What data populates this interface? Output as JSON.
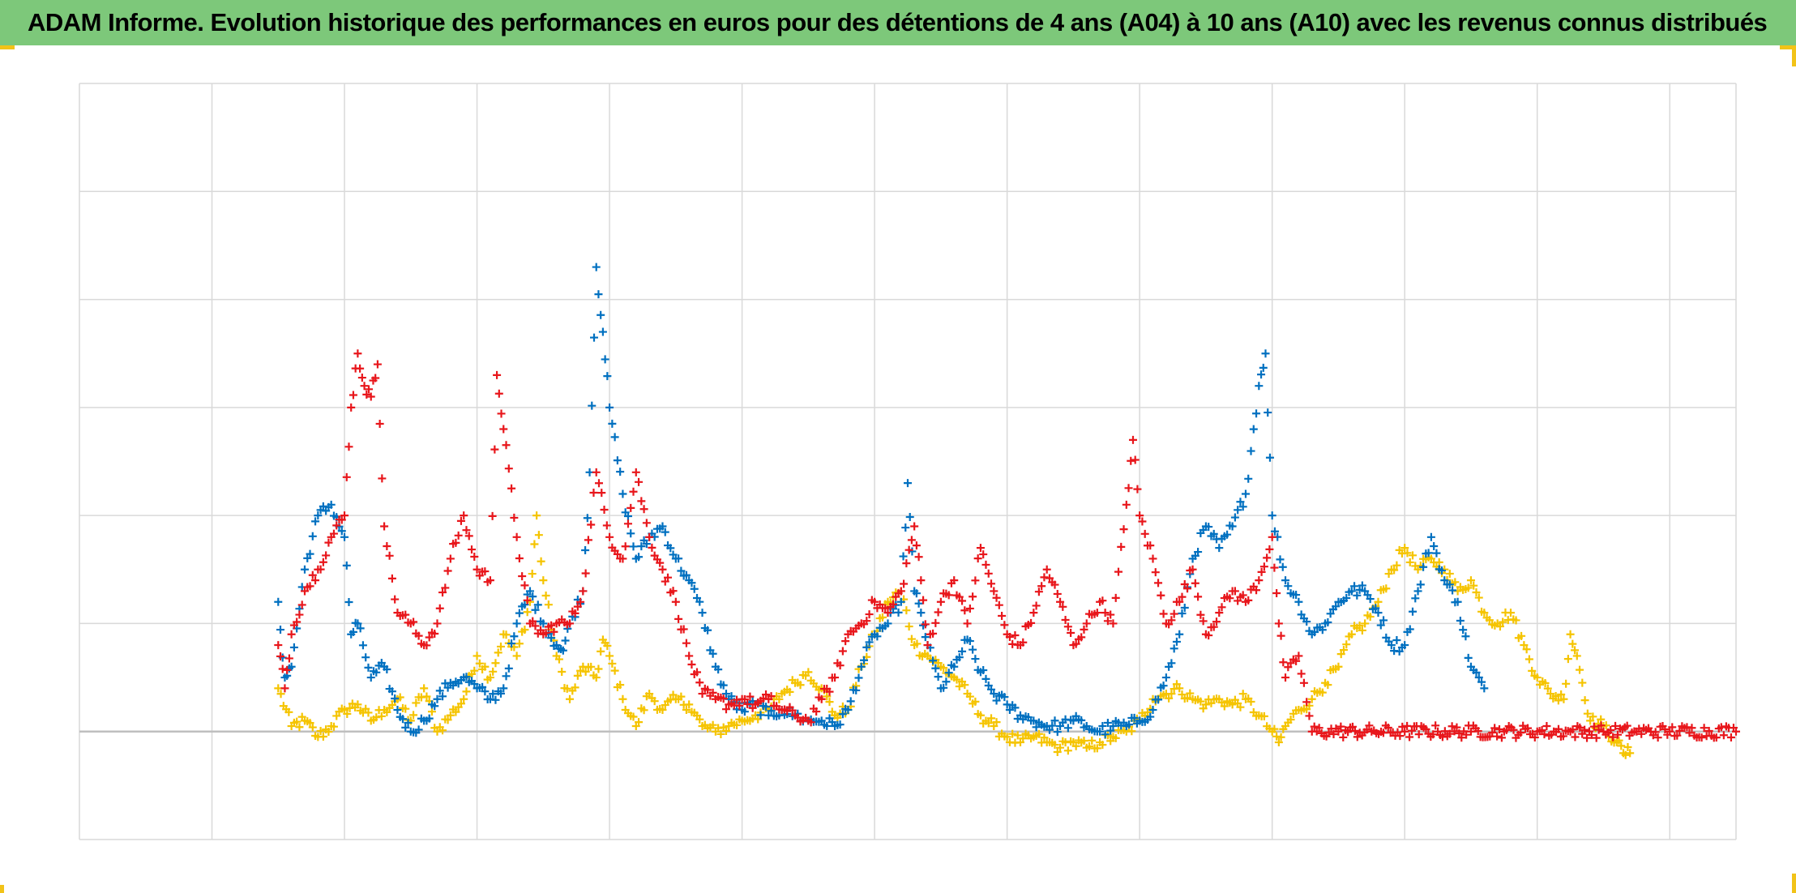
{
  "header": {
    "title": "ADAM Informe. Evolution historique des performances en euros pour des détentions de 4 ans (A04) à 10 ans (A10) avec les revenus connus distribués"
  },
  "colors": {
    "title_bg": "#7dc87a",
    "accent_corner": "#f2c318",
    "grid": "#d9d9d9",
    "zero_line": "#bfbfbf"
  },
  "chart_data": {
    "type": "scatter",
    "marker": "plus",
    "title": "",
    "xlabel": "",
    "ylabel": "",
    "xlim": [
      0,
      12.5
    ],
    "ylim": [
      -1,
      6
    ],
    "grid": true,
    "tick_labels_visible": false,
    "legend": "none",
    "series": [
      {
        "color": "#f5c400",
        "points": [
          [
            1.5,
            0.4
          ],
          [
            1.6,
            0.05
          ],
          [
            1.7,
            0.1
          ],
          [
            1.8,
            -0.05
          ],
          [
            1.9,
            0.05
          ],
          [
            2.0,
            0.2
          ],
          [
            2.1,
            0.25
          ],
          [
            2.2,
            0.1
          ],
          [
            2.3,
            0.2
          ],
          [
            2.4,
            0.3
          ],
          [
            2.5,
            0.1
          ],
          [
            2.6,
            0.4
          ],
          [
            2.7,
            0.0
          ],
          [
            2.8,
            0.15
          ],
          [
            2.9,
            0.3
          ],
          [
            3.0,
            0.7
          ],
          [
            3.1,
            0.5
          ],
          [
            3.2,
            0.9
          ],
          [
            3.3,
            0.7
          ],
          [
            3.4,
            1.2
          ],
          [
            3.45,
            2.0
          ],
          [
            3.5,
            1.4
          ],
          [
            3.6,
            0.7
          ],
          [
            3.7,
            0.3
          ],
          [
            3.8,
            0.6
          ],
          [
            3.9,
            0.5
          ],
          [
            3.95,
            0.85
          ],
          [
            4.0,
            0.7
          ],
          [
            4.1,
            0.3
          ],
          [
            4.2,
            0.05
          ],
          [
            4.3,
            0.35
          ],
          [
            4.4,
            0.2
          ],
          [
            4.5,
            0.3
          ],
          [
            4.6,
            0.25
          ],
          [
            4.7,
            0.05
          ],
          [
            4.8,
            0.0
          ],
          [
            4.9,
            0.05
          ],
          [
            5.0,
            0.1
          ],
          [
            5.1,
            0.15
          ],
          [
            5.2,
            0.2
          ],
          [
            5.3,
            0.35
          ],
          [
            5.4,
            0.45
          ],
          [
            5.5,
            0.55
          ],
          [
            5.6,
            0.4
          ],
          [
            5.7,
            0.15
          ],
          [
            5.8,
            0.2
          ],
          [
            5.9,
            0.6
          ],
          [
            6.0,
            0.9
          ],
          [
            6.1,
            1.2
          ],
          [
            6.2,
            1.3
          ],
          [
            6.3,
            0.8
          ],
          [
            6.4,
            0.7
          ],
          [
            6.5,
            0.6
          ],
          [
            6.6,
            0.5
          ],
          [
            6.7,
            0.35
          ],
          [
            6.8,
            0.15
          ],
          [
            6.9,
            0.05
          ],
          [
            7.0,
            -0.05
          ],
          [
            7.1,
            -0.1
          ],
          [
            7.2,
            -0.05
          ],
          [
            7.3,
            -0.1
          ],
          [
            7.4,
            -0.15
          ],
          [
            7.5,
            -0.1
          ],
          [
            7.6,
            -0.15
          ],
          [
            7.7,
            -0.1
          ],
          [
            7.8,
            -0.05
          ],
          [
            7.9,
            0.0
          ],
          [
            8.0,
            0.1
          ],
          [
            8.1,
            0.3
          ],
          [
            8.2,
            0.35
          ],
          [
            8.3,
            0.4
          ],
          [
            8.4,
            0.3
          ],
          [
            8.5,
            0.25
          ],
          [
            8.6,
            0.3
          ],
          [
            8.7,
            0.25
          ],
          [
            8.8,
            0.3
          ],
          [
            8.9,
            0.15
          ],
          [
            9.0,
            0.0
          ],
          [
            9.05,
            -0.1
          ],
          [
            9.1,
            0.05
          ],
          [
            9.2,
            0.2
          ],
          [
            9.3,
            0.3
          ],
          [
            9.4,
            0.45
          ],
          [
            9.5,
            0.6
          ],
          [
            9.6,
            0.9
          ],
          [
            9.7,
            1.0
          ],
          [
            9.8,
            1.2
          ],
          [
            9.9,
            1.5
          ],
          [
            10.0,
            1.7
          ],
          [
            10.1,
            1.5
          ],
          [
            10.2,
            1.6
          ],
          [
            10.3,
            1.5
          ],
          [
            10.4,
            1.3
          ],
          [
            10.5,
            1.4
          ],
          [
            10.6,
            1.1
          ],
          [
            10.7,
            1.0
          ],
          [
            10.8,
            1.1
          ],
          [
            10.9,
            0.8
          ],
          [
            11.0,
            0.5
          ],
          [
            11.1,
            0.35
          ],
          [
            11.2,
            0.3
          ],
          [
            11.25,
            0.9
          ],
          [
            11.3,
            0.7
          ],
          [
            11.4,
            0.1
          ],
          [
            11.5,
            0.05
          ],
          [
            11.6,
            -0.1
          ],
          [
            11.65,
            -0.2
          ],
          [
            11.7,
            -0.2
          ]
        ]
      },
      {
        "color": "#0070c0",
        "points": [
          [
            1.5,
            1.2
          ],
          [
            1.55,
            0.5
          ],
          [
            1.6,
            0.6
          ],
          [
            1.7,
            1.5
          ],
          [
            1.8,
            2.0
          ],
          [
            1.9,
            2.1
          ],
          [
            2.0,
            1.8
          ],
          [
            2.05,
            0.9
          ],
          [
            2.1,
            1.0
          ],
          [
            2.2,
            0.5
          ],
          [
            2.3,
            0.6
          ],
          [
            2.4,
            0.2
          ],
          [
            2.5,
            0.0
          ],
          [
            2.6,
            0.1
          ],
          [
            2.7,
            0.3
          ],
          [
            2.8,
            0.45
          ],
          [
            2.9,
            0.5
          ],
          [
            3.0,
            0.4
          ],
          [
            3.1,
            0.3
          ],
          [
            3.2,
            0.4
          ],
          [
            3.3,
            1.0
          ],
          [
            3.4,
            1.3
          ],
          [
            3.5,
            1.0
          ],
          [
            3.6,
            0.8
          ],
          [
            3.65,
            0.75
          ],
          [
            3.7,
            1.0
          ],
          [
            3.8,
            1.3
          ],
          [
            3.85,
            2.4
          ],
          [
            3.9,
            4.3
          ],
          [
            3.95,
            3.7
          ],
          [
            4.0,
            3.0
          ],
          [
            4.1,
            2.2
          ],
          [
            4.2,
            1.6
          ],
          [
            4.3,
            1.8
          ],
          [
            4.4,
            1.9
          ],
          [
            4.5,
            1.6
          ],
          [
            4.6,
            1.4
          ],
          [
            4.7,
            1.1
          ],
          [
            4.8,
            0.6
          ],
          [
            4.9,
            0.3
          ],
          [
            5.0,
            0.2
          ],
          [
            5.1,
            0.25
          ],
          [
            5.2,
            0.15
          ],
          [
            5.3,
            0.2
          ],
          [
            5.4,
            0.15
          ],
          [
            5.5,
            0.1
          ],
          [
            5.6,
            0.1
          ],
          [
            5.7,
            0.05
          ],
          [
            5.8,
            0.2
          ],
          [
            5.9,
            0.6
          ],
          [
            6.0,
            0.9
          ],
          [
            6.1,
            1.0
          ],
          [
            6.2,
            1.2
          ],
          [
            6.25,
            2.3
          ],
          [
            6.3,
            1.3
          ],
          [
            6.35,
            1.1
          ],
          [
            6.4,
            0.8
          ],
          [
            6.5,
            0.4
          ],
          [
            6.6,
            0.6
          ],
          [
            6.7,
            0.85
          ],
          [
            6.8,
            0.55
          ],
          [
            6.9,
            0.35
          ],
          [
            7.0,
            0.25
          ],
          [
            7.1,
            0.15
          ],
          [
            7.2,
            0.1
          ],
          [
            7.3,
            0.05
          ],
          [
            7.4,
            0.05
          ],
          [
            7.5,
            0.1
          ],
          [
            7.6,
            0.05
          ],
          [
            7.7,
            0.0
          ],
          [
            7.8,
            0.05
          ],
          [
            7.9,
            0.05
          ],
          [
            8.0,
            0.1
          ],
          [
            8.1,
            0.2
          ],
          [
            8.2,
            0.5
          ],
          [
            8.3,
            0.9
          ],
          [
            8.4,
            1.6
          ],
          [
            8.5,
            1.9
          ],
          [
            8.6,
            1.7
          ],
          [
            8.7,
            1.9
          ],
          [
            8.8,
            2.2
          ],
          [
            8.9,
            3.2
          ],
          [
            8.95,
            3.5
          ],
          [
            9.0,
            2.0
          ],
          [
            9.1,
            1.4
          ],
          [
            9.2,
            1.2
          ],
          [
            9.3,
            0.9
          ],
          [
            9.4,
            1.0
          ],
          [
            9.5,
            1.2
          ],
          [
            9.6,
            1.3
          ],
          [
            9.7,
            1.3
          ],
          [
            9.8,
            1.1
          ],
          [
            9.9,
            0.8
          ],
          [
            10.0,
            0.8
          ],
          [
            10.1,
            1.3
          ],
          [
            10.2,
            1.8
          ],
          [
            10.3,
            1.4
          ],
          [
            10.4,
            1.2
          ],
          [
            10.5,
            0.6
          ],
          [
            10.6,
            0.4
          ]
        ]
      },
      {
        "color": "#e8161b",
        "points": [
          [
            1.5,
            0.8
          ],
          [
            1.55,
            0.4
          ],
          [
            1.6,
            0.9
          ],
          [
            1.7,
            1.3
          ],
          [
            1.8,
            1.5
          ],
          [
            1.9,
            1.8
          ],
          [
            2.0,
            2.0
          ],
          [
            2.05,
            3.0
          ],
          [
            2.1,
            3.5
          ],
          [
            2.15,
            3.2
          ],
          [
            2.2,
            3.1
          ],
          [
            2.25,
            3.4
          ],
          [
            2.3,
            1.9
          ],
          [
            2.4,
            1.1
          ],
          [
            2.5,
            1.0
          ],
          [
            2.6,
            0.8
          ],
          [
            2.7,
            1.0
          ],
          [
            2.8,
            1.6
          ],
          [
            2.9,
            2.0
          ],
          [
            3.0,
            1.5
          ],
          [
            3.1,
            1.4
          ],
          [
            3.15,
            3.3
          ],
          [
            3.2,
            2.8
          ],
          [
            3.3,
            1.8
          ],
          [
            3.4,
            1.0
          ],
          [
            3.5,
            0.9
          ],
          [
            3.6,
            1.0
          ],
          [
            3.7,
            1.0
          ],
          [
            3.8,
            1.3
          ],
          [
            3.9,
            2.4
          ],
          [
            4.0,
            1.8
          ],
          [
            4.1,
            1.6
          ],
          [
            4.2,
            2.4
          ],
          [
            4.3,
            1.8
          ],
          [
            4.4,
            1.5
          ],
          [
            4.5,
            1.2
          ],
          [
            4.6,
            0.7
          ],
          [
            4.7,
            0.35
          ],
          [
            4.8,
            0.3
          ],
          [
            4.9,
            0.25
          ],
          [
            5.0,
            0.3
          ],
          [
            5.1,
            0.25
          ],
          [
            5.2,
            0.3
          ],
          [
            5.3,
            0.2
          ],
          [
            5.4,
            0.15
          ],
          [
            5.5,
            0.1
          ],
          [
            5.6,
            0.3
          ],
          [
            5.7,
            0.5
          ],
          [
            5.8,
            0.9
          ],
          [
            5.9,
            1.0
          ],
          [
            6.0,
            1.2
          ],
          [
            6.1,
            1.1
          ],
          [
            6.2,
            1.3
          ],
          [
            6.3,
            1.9
          ],
          [
            6.35,
            1.4
          ],
          [
            6.4,
            0.8
          ],
          [
            6.5,
            1.2
          ],
          [
            6.6,
            1.4
          ],
          [
            6.7,
            1.0
          ],
          [
            6.8,
            1.7
          ],
          [
            6.9,
            1.3
          ],
          [
            7.0,
            0.9
          ],
          [
            7.1,
            0.8
          ],
          [
            7.2,
            1.1
          ],
          [
            7.3,
            1.5
          ],
          [
            7.4,
            1.2
          ],
          [
            7.5,
            0.8
          ],
          [
            7.6,
            1.0
          ],
          [
            7.7,
            1.2
          ],
          [
            7.8,
            1.0
          ],
          [
            7.9,
            2.1
          ],
          [
            7.95,
            2.7
          ],
          [
            8.0,
            2.0
          ],
          [
            8.1,
            1.6
          ],
          [
            8.2,
            1.0
          ],
          [
            8.3,
            1.2
          ],
          [
            8.4,
            1.5
          ],
          [
            8.5,
            0.9
          ],
          [
            8.6,
            1.1
          ],
          [
            8.7,
            1.3
          ],
          [
            8.8,
            1.2
          ],
          [
            8.9,
            1.4
          ],
          [
            9.0,
            1.8
          ],
          [
            9.05,
            1.0
          ],
          [
            9.1,
            0.5
          ],
          [
            9.2,
            0.7
          ],
          [
            9.3,
            0.0
          ],
          [
            9.5,
            0.0
          ],
          [
            9.75,
            0.0
          ],
          [
            10.0,
            0.0
          ],
          [
            10.25,
            0.0
          ],
          [
            10.5,
            0.0
          ],
          [
            10.75,
            0.0
          ],
          [
            11.0,
            0.0
          ],
          [
            11.25,
            0.0
          ],
          [
            11.5,
            0.0
          ],
          [
            11.75,
            0.0
          ],
          [
            12.0,
            0.0
          ],
          [
            12.5,
            0.0
          ]
        ]
      }
    ]
  }
}
